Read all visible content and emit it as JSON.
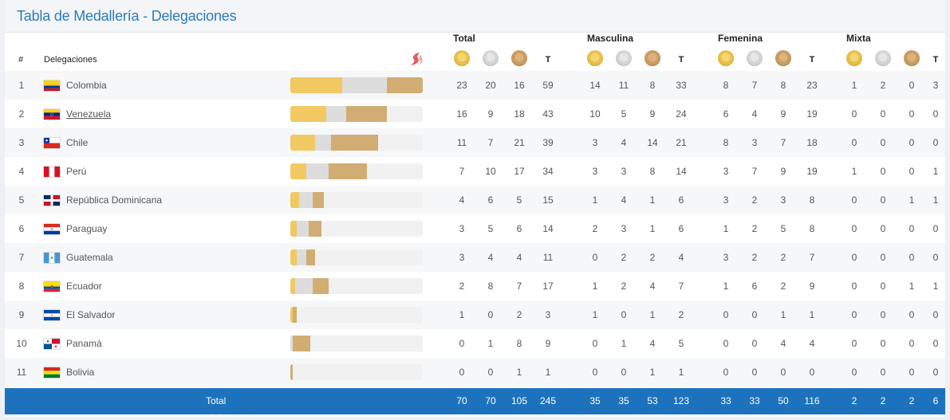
{
  "title": "Tabla de Medallería - Delegaciones",
  "groups": {
    "total": "Total",
    "masculina": "Masculina",
    "femenina": "Femenina",
    "mixta": "Mixta"
  },
  "header": {
    "rank": "#",
    "delegation": "Delegaciones",
    "t": "T"
  },
  "sport_icon": "sport-logo-icon",
  "medal_icons": [
    "gold-medal-icon",
    "silver-medal-icon",
    "bronze-medal-icon"
  ],
  "colors": {
    "title": "#2b7cc0",
    "gold": "#f2c862",
    "silver": "#dcdcdc",
    "bronze": "#d1ad73",
    "total_bar": "#1d72bd"
  },
  "bar_scale_max": 59,
  "rows": [
    {
      "rank": "1",
      "country": "Colombia",
      "flag": "colombia",
      "link": false,
      "total": [
        "23",
        "20",
        "16",
        "59"
      ],
      "masculina": [
        "14",
        "11",
        "8",
        "33"
      ],
      "femenina": [
        "8",
        "7",
        "8",
        "23"
      ],
      "mixta": [
        "1",
        "2",
        "0",
        "3"
      ]
    },
    {
      "rank": "2",
      "country": "Venezuela",
      "flag": "venezuela",
      "link": true,
      "total": [
        "16",
        "9",
        "18",
        "43"
      ],
      "masculina": [
        "10",
        "5",
        "9",
        "24"
      ],
      "femenina": [
        "6",
        "4",
        "9",
        "19"
      ],
      "mixta": [
        "0",
        "0",
        "0",
        "0"
      ]
    },
    {
      "rank": "3",
      "country": "Chile",
      "flag": "chile",
      "link": false,
      "total": [
        "11",
        "7",
        "21",
        "39"
      ],
      "masculina": [
        "3",
        "4",
        "14",
        "21"
      ],
      "femenina": [
        "8",
        "3",
        "7",
        "18"
      ],
      "mixta": [
        "0",
        "0",
        "0",
        "0"
      ]
    },
    {
      "rank": "4",
      "country": "Perú",
      "flag": "peru",
      "link": false,
      "total": [
        "7",
        "10",
        "17",
        "34"
      ],
      "masculina": [
        "3",
        "3",
        "8",
        "14"
      ],
      "femenina": [
        "3",
        "7",
        "9",
        "19"
      ],
      "mixta": [
        "1",
        "0",
        "0",
        "1"
      ]
    },
    {
      "rank": "5",
      "country": "República Dominicana",
      "flag": "dominicana",
      "link": false,
      "total": [
        "4",
        "6",
        "5",
        "15"
      ],
      "masculina": [
        "1",
        "4",
        "1",
        "6"
      ],
      "femenina": [
        "3",
        "2",
        "3",
        "8"
      ],
      "mixta": [
        "0",
        "0",
        "1",
        "1"
      ]
    },
    {
      "rank": "6",
      "country": "Paraguay",
      "flag": "paraguay",
      "link": false,
      "total": [
        "3",
        "5",
        "6",
        "14"
      ],
      "masculina": [
        "2",
        "3",
        "1",
        "6"
      ],
      "femenina": [
        "1",
        "2",
        "5",
        "8"
      ],
      "mixta": [
        "0",
        "0",
        "0",
        "0"
      ]
    },
    {
      "rank": "7",
      "country": "Guatemala",
      "flag": "guatemala",
      "link": false,
      "total": [
        "3",
        "4",
        "4",
        "11"
      ],
      "masculina": [
        "0",
        "2",
        "2",
        "4"
      ],
      "femenina": [
        "3",
        "2",
        "2",
        "7"
      ],
      "mixta": [
        "0",
        "0",
        "0",
        "0"
      ]
    },
    {
      "rank": "8",
      "country": "Ecuador",
      "flag": "ecuador",
      "link": false,
      "total": [
        "2",
        "8",
        "7",
        "17"
      ],
      "masculina": [
        "1",
        "2",
        "4",
        "7"
      ],
      "femenina": [
        "1",
        "6",
        "2",
        "9"
      ],
      "mixta": [
        "0",
        "0",
        "1",
        "1"
      ]
    },
    {
      "rank": "9",
      "country": "El Salvador",
      "flag": "elsalvador",
      "link": false,
      "total": [
        "1",
        "0",
        "2",
        "3"
      ],
      "masculina": [
        "1",
        "0",
        "1",
        "2"
      ],
      "femenina": [
        "0",
        "0",
        "1",
        "1"
      ],
      "mixta": [
        "0",
        "0",
        "0",
        "0"
      ]
    },
    {
      "rank": "10",
      "country": "Panamá",
      "flag": "panama",
      "link": false,
      "total": [
        "0",
        "1",
        "8",
        "9"
      ],
      "masculina": [
        "0",
        "1",
        "4",
        "5"
      ],
      "femenina": [
        "0",
        "0",
        "4",
        "4"
      ],
      "mixta": [
        "0",
        "0",
        "0",
        "0"
      ]
    },
    {
      "rank": "11",
      "country": "Bolivia",
      "flag": "bolivia",
      "link": false,
      "total": [
        "0",
        "0",
        "1",
        "1"
      ],
      "masculina": [
        "0",
        "0",
        "1",
        "1"
      ],
      "femenina": [
        "0",
        "0",
        "0",
        "0"
      ],
      "mixta": [
        "0",
        "0",
        "0",
        "0"
      ]
    }
  ],
  "totals": {
    "label": "Total",
    "total": [
      "70",
      "70",
      "105",
      "245"
    ],
    "masculina": [
      "35",
      "35",
      "53",
      "123"
    ],
    "femenina": [
      "33",
      "33",
      "50",
      "116"
    ],
    "mixta": [
      "2",
      "2",
      "2",
      "6"
    ]
  }
}
